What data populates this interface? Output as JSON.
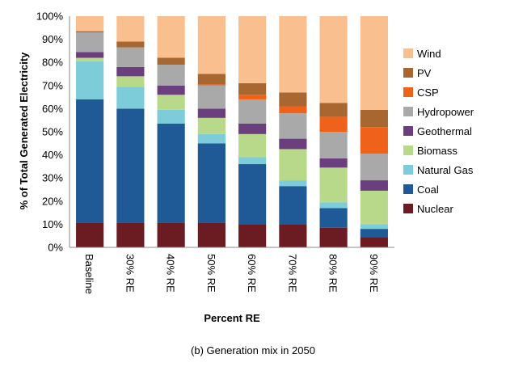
{
  "chart_data": {
    "type": "bar",
    "stacked": true,
    "title": "",
    "xlabel": "Percent RE",
    "ylabel": "% of Total Generated Electricity",
    "ylim": [
      0,
      100
    ],
    "yticks": [
      "0%",
      "10%",
      "20%",
      "30%",
      "40%",
      "50%",
      "60%",
      "70%",
      "80%",
      "90%",
      "100%"
    ],
    "grid": false,
    "legend_position": "right",
    "categories": [
      "Baseline",
      "30% RE",
      "40% RE",
      "50% RE",
      "60% RE",
      "70% RE",
      "80% RE",
      "90% RE"
    ],
    "series": [
      {
        "name": "Nuclear",
        "color": "#6B1C23",
        "values": [
          10.5,
          10.5,
          10.5,
          10.5,
          10,
          10,
          8.5,
          4.5
        ]
      },
      {
        "name": "Coal",
        "color": "#1F5A96",
        "values": [
          53.5,
          49.5,
          43,
          34.5,
          26,
          16.5,
          8.5,
          3.5
        ]
      },
      {
        "name": "Natural Gas",
        "color": "#7DCCD9",
        "values": [
          16.5,
          9.5,
          6,
          4,
          3,
          2.5,
          2.5,
          2
        ]
      },
      {
        "name": "Biomass",
        "color": "#B8D98A",
        "values": [
          1.5,
          4.5,
          6.5,
          7,
          10,
          13.5,
          15,
          14.5
        ]
      },
      {
        "name": "Geothermal",
        "color": "#6B3F7E",
        "values": [
          2.5,
          4,
          4,
          4,
          4.5,
          4.5,
          4,
          4.5
        ]
      },
      {
        "name": "Hydropower",
        "color": "#A9A9A9",
        "values": [
          8.5,
          8.5,
          9,
          10,
          10.5,
          11,
          11.5,
          11.5
        ]
      },
      {
        "name": "CSP",
        "color": "#F06219",
        "values": [
          0,
          0,
          0,
          0.5,
          2,
          3,
          6.5,
          11.5
        ]
      },
      {
        "name": "PV",
        "color": "#A86630",
        "values": [
          0.5,
          2.5,
          3,
          4.5,
          5,
          6,
          6,
          7.5
        ]
      },
      {
        "name": "Wind",
        "color": "#F9BF8E",
        "values": [
          6.5,
          11,
          18,
          25,
          29,
          33,
          37.5,
          40.5
        ]
      }
    ],
    "legend_order": [
      "Wind",
      "PV",
      "CSP",
      "Hydropower",
      "Geothermal",
      "Biomass",
      "Natural Gas",
      "Coal",
      "Nuclear"
    ]
  },
  "caption": "(b) Generation mix in 2050"
}
